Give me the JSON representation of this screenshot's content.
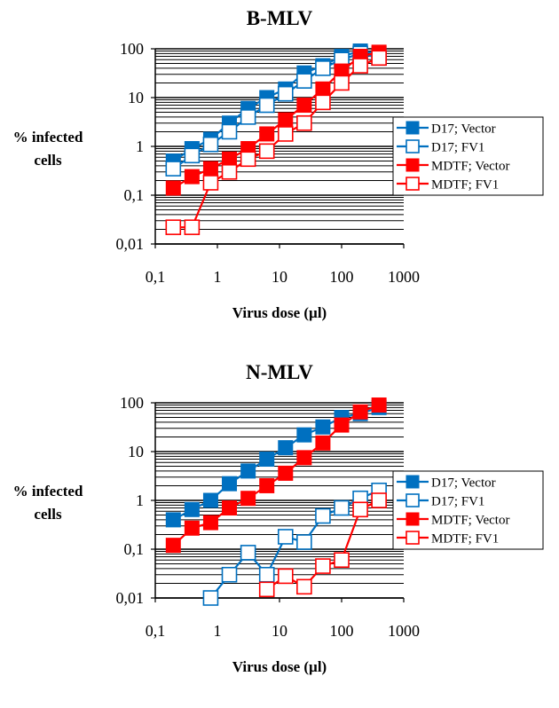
{
  "chart_data": [
    {
      "type": "line",
      "title": "B-MLV",
      "xlabel": "Virus dose (µl)",
      "ylabel": "% infected cells",
      "xscale": "log",
      "yscale": "log",
      "xlim": [
        0.1,
        1000
      ],
      "ylim": [
        0.01,
        100
      ],
      "xtick_labels": [
        "0,1",
        "1",
        "10",
        "100",
        "1000"
      ],
      "ytick_labels": [
        "0,01",
        "0,1",
        "1",
        "10",
        "100"
      ],
      "grid": true,
      "legend": "right",
      "series": [
        {
          "name": "D17; Vector",
          "color": "#0070C0",
          "marker": "filled-square",
          "x": [
            0.195,
            0.39,
            0.78,
            1.56,
            3.125,
            6.25,
            12.5,
            25,
            50,
            100,
            200,
            400
          ],
          "y": [
            0.5,
            0.9,
            1.4,
            3,
            6,
            10,
            15,
            32,
            45,
            70,
            90,
            80
          ]
        },
        {
          "name": "D17; FV1",
          "color": "#0070C0",
          "marker": "open-square",
          "x": [
            0.195,
            0.39,
            0.78,
            1.56,
            3.125,
            6.25,
            12.5,
            25,
            50,
            100,
            200,
            400
          ],
          "y": [
            0.35,
            0.65,
            1.1,
            2,
            4,
            7,
            12,
            22,
            40,
            60,
            80,
            65
          ]
        },
        {
          "name": "MDTF; Vector",
          "color": "#FF0000",
          "marker": "filled-square",
          "x": [
            0.195,
            0.39,
            0.78,
            1.56,
            3.125,
            6.25,
            12.5,
            25,
            50,
            100,
            200,
            400
          ],
          "y": [
            0.14,
            0.24,
            0.35,
            0.55,
            0.9,
            1.8,
            3.5,
            7,
            15,
            35,
            70,
            85
          ]
        },
        {
          "name": "MDTF; FV1",
          "color": "#FF0000",
          "marker": "open-square",
          "x": [
            0.195,
            0.39,
            0.78,
            1.56,
            3.125,
            6.25,
            12.5,
            25,
            50,
            100,
            200,
            400
          ],
          "y": [
            0.022,
            0.022,
            0.18,
            0.3,
            0.55,
            0.8,
            1.8,
            3,
            8,
            20,
            45,
            65
          ]
        }
      ]
    },
    {
      "type": "line",
      "title": "N-MLV",
      "xlabel": "Virus dose (µl)",
      "ylabel": "% infected cells",
      "xscale": "log",
      "yscale": "log",
      "xlim": [
        0.1,
        1000
      ],
      "ylim": [
        0.01,
        100
      ],
      "xtick_labels": [
        "0,1",
        "1",
        "10",
        "100",
        "1000"
      ],
      "ytick_labels": [
        "0,01",
        "0,1",
        "1",
        "10",
        "100"
      ],
      "grid": true,
      "legend": "right",
      "series": [
        {
          "name": "D17; Vector",
          "color": "#0070C0",
          "marker": "filled-square",
          "x": [
            0.195,
            0.39,
            0.78,
            1.56,
            3.125,
            6.25,
            12.5,
            25,
            50,
            100,
            200,
            400
          ],
          "y": [
            0.4,
            0.65,
            1,
            2.2,
            4,
            7,
            12,
            22,
            32,
            50,
            60,
            80
          ]
        },
        {
          "name": "D17; FV1",
          "color": "#0070C0",
          "marker": "open-square",
          "x": [
            0.78,
            1.56,
            3.125,
            6.25,
            12.5,
            25,
            50,
            100,
            200,
            400
          ],
          "y": [
            0.01,
            0.03,
            0.085,
            0.03,
            0.18,
            0.14,
            0.48,
            0.7,
            1.1,
            1.6
          ]
        },
        {
          "name": "MDTF; Vector",
          "color": "#FF0000",
          "marker": "filled-square",
          "x": [
            0.195,
            0.39,
            0.78,
            1.56,
            3.125,
            6.25,
            12.5,
            25,
            50,
            100,
            200,
            400
          ],
          "y": [
            0.12,
            0.27,
            0.35,
            0.7,
            1.1,
            2,
            3.6,
            7.5,
            15,
            35,
            65,
            90
          ]
        },
        {
          "name": "MDTF; FV1",
          "color": "#FF0000",
          "marker": "open-square",
          "x": [
            6.25,
            12.5,
            25,
            50,
            100,
            200,
            400
          ],
          "y": [
            0.015,
            0.028,
            0.017,
            0.045,
            0.06,
            0.65,
            1
          ]
        }
      ]
    }
  ]
}
